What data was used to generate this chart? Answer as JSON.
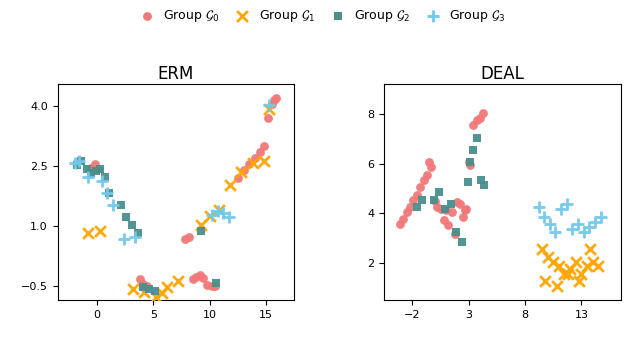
{
  "title_left": "ERM",
  "title_right": "DEAL",
  "legend_labels": [
    "Group $\\mathcal{G}_0$",
    "Group $\\mathcal{G}_1$",
    "Group $\\mathcal{G}_2$",
    "Group $\\mathcal{G}_3$"
  ],
  "colors": [
    "#F07878",
    "#FFA500",
    "#4A8F8C",
    "#72C8EA"
  ],
  "markers": [
    "o",
    "x",
    "s",
    "+"
  ],
  "marker_sizes": [
    40,
    60,
    40,
    80
  ],
  "marker_linewidths": [
    0,
    2.0,
    0,
    2.0
  ],
  "erm_g0_x": [
    -0.5,
    -0.2,
    0.1,
    3.8,
    4.1,
    4.4,
    7.8,
    8.2,
    8.5,
    8.8,
    9.1,
    9.4,
    9.8,
    10.2,
    10.5,
    12.5,
    13.0,
    13.5,
    14.0,
    14.5,
    14.8,
    15.2,
    15.5,
    15.7,
    15.9
  ],
  "erm_g0_y": [
    2.45,
    2.55,
    2.42,
    -0.32,
    -0.45,
    -0.5,
    0.68,
    0.72,
    -0.32,
    -0.28,
    -0.22,
    -0.3,
    -0.48,
    -0.5,
    -0.5,
    2.2,
    2.4,
    2.55,
    2.7,
    2.85,
    3.0,
    3.7,
    4.05,
    4.15,
    4.2
  ],
  "erm_g1_x": [
    -0.8,
    0.3,
    3.2,
    4.2,
    5.2,
    5.8,
    6.2,
    7.2,
    9.2,
    10.0,
    10.8,
    11.8,
    12.8,
    13.8,
    14.8,
    15.3
  ],
  "erm_g1_y": [
    0.82,
    0.88,
    -0.58,
    -0.65,
    -0.78,
    -0.68,
    -0.52,
    -0.38,
    1.02,
    1.25,
    1.4,
    2.02,
    2.35,
    2.58,
    2.62,
    3.92
  ],
  "erm_g2_x": [
    -1.8,
    -1.4,
    -0.9,
    -0.5,
    -0.1,
    0.3,
    0.7,
    1.1,
    2.1,
    2.6,
    3.1,
    3.6,
    4.1,
    4.6,
    5.1,
    9.2,
    10.6
  ],
  "erm_g2_y": [
    2.52,
    2.62,
    2.42,
    2.32,
    2.38,
    2.42,
    2.22,
    1.82,
    1.52,
    1.22,
    1.02,
    0.82,
    -0.52,
    -0.58,
    -0.62,
    0.88,
    -0.42
  ],
  "erm_g3_x": [
    -2.0,
    -1.6,
    -0.8,
    0.4,
    0.9,
    1.4,
    2.4,
    3.4,
    10.2,
    10.7,
    11.2,
    11.7,
    15.3
  ],
  "erm_g3_y": [
    2.58,
    2.62,
    2.22,
    2.12,
    1.82,
    1.52,
    0.68,
    0.72,
    1.28,
    1.38,
    1.32,
    1.22,
    4.02
  ],
  "deal_g0_x": [
    -3.1,
    -2.8,
    -2.5,
    -2.2,
    -1.9,
    -1.6,
    -1.3,
    -1.0,
    -0.7,
    0.8,
    1.2,
    1.8,
    2.2,
    2.5,
    2.8,
    3.1,
    3.4,
    3.7,
    4.0,
    4.3,
    0.2,
    0.5,
    -0.3,
    2.0,
    1.5,
    0.0,
    -0.5,
    3.0,
    2.7,
    1.0
  ],
  "deal_g0_y": [
    3.55,
    3.75,
    4.05,
    4.25,
    4.55,
    4.75,
    5.05,
    5.35,
    5.55,
    3.72,
    3.52,
    3.15,
    4.35,
    3.85,
    4.15,
    5.95,
    7.55,
    7.75,
    7.85,
    8.05,
    4.25,
    4.15,
    5.85,
    4.45,
    4.05,
    4.5,
    6.05,
    6.05,
    4.12,
    4.12
  ],
  "deal_g1_x": [
    9.5,
    10.0,
    10.5,
    11.0,
    11.5,
    12.0,
    12.5,
    13.0,
    13.5,
    14.0,
    14.5,
    9.8,
    10.8,
    11.8,
    12.8,
    13.8
  ],
  "deal_g1_y": [
    2.55,
    2.25,
    2.05,
    1.85,
    1.55,
    1.75,
    2.05,
    1.55,
    1.85,
    2.05,
    1.85,
    1.25,
    1.05,
    1.55,
    1.25,
    2.55
  ],
  "deal_g2_x": [
    -1.6,
    -1.1,
    -0.1,
    0.4,
    0.9,
    1.4,
    1.9,
    2.4,
    2.9,
    3.1,
    3.4,
    3.7,
    4.1,
    4.4
  ],
  "deal_g2_y": [
    4.25,
    4.55,
    4.55,
    4.85,
    4.15,
    4.35,
    3.25,
    2.85,
    5.25,
    6.05,
    6.55,
    7.05,
    5.35,
    5.15
  ],
  "deal_g3_x": [
    9.2,
    9.7,
    10.2,
    10.7,
    11.2,
    11.7,
    12.2,
    12.7,
    13.2,
    13.7,
    14.2,
    14.7
  ],
  "deal_g3_y": [
    4.25,
    3.85,
    3.55,
    3.25,
    4.15,
    4.35,
    3.35,
    3.55,
    3.25,
    3.45,
    3.65,
    3.85
  ]
}
